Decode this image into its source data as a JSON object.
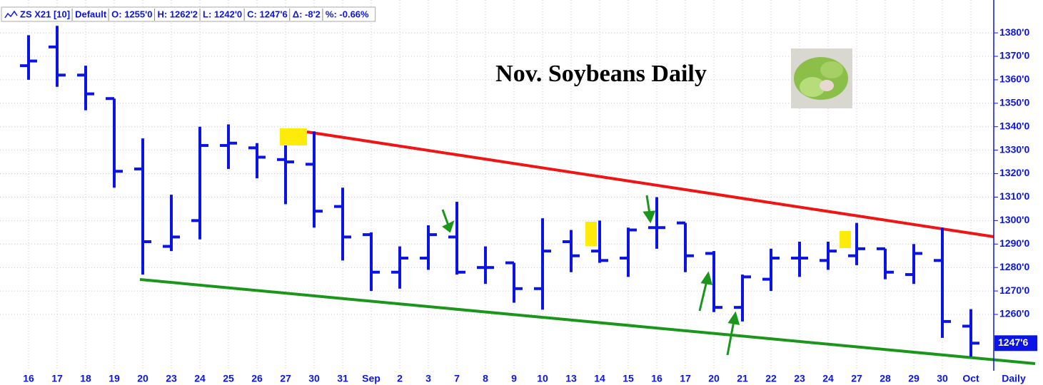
{
  "chart_data": {
    "type": "ohlc",
    "title": "Nov. Soybeans Daily",
    "header": [
      "ZS X21 [10]",
      "Default",
      "O: 1255'0",
      "H: 1262'2",
      "L: 1242'0",
      "C: 1247'6",
      "Δ: -8'2",
      "%: -0.66%"
    ],
    "period": "Daily",
    "categories": [
      "16",
      "17",
      "18",
      "19",
      "20",
      "23",
      "24",
      "25",
      "26",
      "27",
      "30",
      "31",
      "Sep",
      "2",
      "3",
      "7",
      "8",
      "9",
      "10",
      "13",
      "14",
      "15",
      "16",
      "17",
      "20",
      "21",
      "22",
      "23",
      "24",
      "27",
      "28",
      "29",
      "30",
      "Oct"
    ],
    "color": "#0a14e6",
    "open": [
      1366,
      1374,
      1362,
      1352,
      1322,
      1289,
      1300,
      1332,
      1331,
      1326,
      1324,
      1306,
      1294,
      1278,
      1284,
      1293,
      1280,
      1282,
      1271,
      1291,
      1287,
      1284,
      1297,
      1299,
      1286,
      1263,
      1275,
      1284,
      1283,
      1285,
      1288,
      1277,
      1283,
      1255
    ],
    "high": [
      1379,
      1383,
      1366,
      1352,
      1335,
      1311,
      1340,
      1341,
      1333,
      1332,
      1338,
      1314,
      1295,
      1289,
      1298,
      1308,
      1289,
      1282,
      1301,
      1296,
      1300,
      1297,
      1310,
      1299,
      1287,
      1277,
      1288,
      1291,
      1291,
      1299,
      1288,
      1290,
      1297,
      1262.25
    ],
    "low": [
      1360,
      1357,
      1347,
      1314,
      1277,
      1287,
      1292,
      1322,
      1318,
      1307,
      1297,
      1283,
      1270,
      1271,
      1279,
      1277,
      1273,
      1265,
      1262,
      1278,
      1282,
      1276,
      1288,
      1278,
      1261,
      1257,
      1270,
      1276,
      1279,
      1281,
      1275,
      1273,
      1250,
      1242
    ],
    "close": [
      1368,
      1362,
      1354,
      1321,
      1291,
      1293,
      1332,
      1333,
      1327,
      1325,
      1304,
      1293,
      1278,
      1284,
      1294,
      1278,
      1280,
      1271,
      1287,
      1285,
      1283,
      1296,
      1297,
      1285,
      1263,
      1276,
      1284,
      1284,
      1287,
      1288,
      1278,
      1286,
      1257,
      1247.75
    ],
    "ylim": [
      1236,
      1394
    ],
    "yticks": [
      {
        "value": 1260,
        "label": "1260'0"
      },
      {
        "value": 1270,
        "label": "1270'0"
      },
      {
        "value": 1280,
        "label": "1280'0"
      },
      {
        "value": 1290,
        "label": "1290'0"
      },
      {
        "value": 1300,
        "label": "1300'0"
      },
      {
        "value": 1310,
        "label": "1310'0"
      },
      {
        "value": 1320,
        "label": "1320'0"
      },
      {
        "value": 1330,
        "label": "1330'0"
      },
      {
        "value": 1340,
        "label": "1340'0"
      },
      {
        "value": 1350,
        "label": "1350'0"
      },
      {
        "value": 1360,
        "label": "1360'0"
      },
      {
        "value": 1370,
        "label": "1370'0"
      },
      {
        "value": 1380,
        "label": "1380'0"
      }
    ],
    "last_price": {
      "value": 1247.75,
      "label": "1247'6"
    },
    "grid": true
  }
}
